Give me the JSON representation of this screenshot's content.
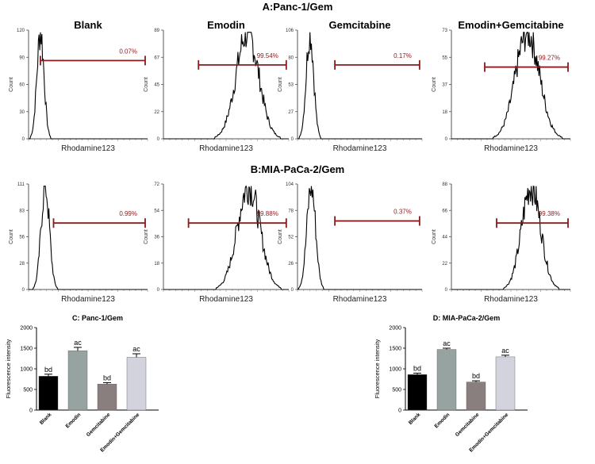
{
  "section_a_title": "A:Panc-1/Gem",
  "section_b_title": "B:MIA-PaCa-2/Gem",
  "chart_data": [
    {
      "type": "histogram",
      "panel": "A-1",
      "title": "Blank",
      "xlabel": "Rhodamine123",
      "ylabel": "Count",
      "yticks": [
        "0",
        "30",
        "60",
        "90",
        "120"
      ],
      "ylim": [
        0,
        120
      ],
      "peak_pos": 0.1,
      "spread": 0.03,
      "gate": [
        0.1,
        0.98
      ],
      "gate_level": 0.72,
      "gate_label": "0.07%"
    },
    {
      "type": "histogram",
      "panel": "A-2",
      "title": "Emodin",
      "xlabel": "Rhodamine123",
      "ylabel": "Count",
      "yticks": [
        "0",
        "22",
        "45",
        "67",
        "89"
      ],
      "ylim": [
        0,
        89
      ],
      "peak_pos": 0.67,
      "spread": 0.09,
      "gate": [
        0.28,
        0.98
      ],
      "gate_level": 0.68,
      "gate_label": "99.54%"
    },
    {
      "type": "histogram",
      "panel": "A-3",
      "title": "Gemcitabine",
      "xlabel": "Rhodamine123",
      "ylabel": "Count",
      "yticks": [
        "0",
        "27",
        "53",
        "80",
        "106"
      ],
      "ylim": [
        0,
        106
      ],
      "peak_pos": 0.1,
      "spread": 0.03,
      "gate": [
        0.3,
        0.98
      ],
      "gate_level": 0.68,
      "gate_label": "0.17%"
    },
    {
      "type": "histogram",
      "panel": "A-4",
      "title": "Emodin+Gemcitabine",
      "xlabel": "Rhodamine123",
      "ylabel": "Count",
      "yticks": [
        "0",
        "18",
        "37",
        "55",
        "73"
      ],
      "ylim": [
        0,
        73
      ],
      "peak_pos": 0.64,
      "spread": 0.1,
      "gate": [
        0.28,
        0.98
      ],
      "gate_level": 0.66,
      "gate_label": "99.27%"
    },
    {
      "type": "histogram",
      "panel": "B-1",
      "title": "",
      "xlabel": "Rhodamine123",
      "ylabel": "Count",
      "yticks": [
        "0",
        "28",
        "56",
        "83",
        "111"
      ],
      "ylim": [
        0,
        111
      ],
      "peak_pos": 0.14,
      "spread": 0.035,
      "gate": [
        0.21,
        0.98
      ],
      "gate_level": 0.63,
      "gate_label": "0.99%"
    },
    {
      "type": "histogram",
      "panel": "B-2",
      "title": "",
      "xlabel": "Rhodamine123",
      "ylabel": "Count",
      "yticks": [
        "0",
        "18",
        "36",
        "54",
        "72"
      ],
      "ylim": [
        0,
        72
      ],
      "peak_pos": 0.68,
      "spread": 0.09,
      "gate": [
        0.2,
        0.98
      ],
      "gate_level": 0.63,
      "gate_label": "99.88%"
    },
    {
      "type": "histogram",
      "panel": "B-3",
      "title": "",
      "xlabel": "Rhodamine123",
      "ylabel": "Count",
      "yticks": [
        "0",
        "26",
        "52",
        "78",
        "104"
      ],
      "ylim": [
        0,
        104
      ],
      "peak_pos": 0.11,
      "spread": 0.035,
      "gate": [
        0.3,
        0.98
      ],
      "gate_level": 0.65,
      "gate_label": "0.37%"
    },
    {
      "type": "histogram",
      "panel": "B-4",
      "title": "",
      "xlabel": "Rhodamine123",
      "ylabel": "Count",
      "yticks": [
        "0",
        "22",
        "44",
        "66",
        "88"
      ],
      "ylim": [
        0,
        88
      ],
      "peak_pos": 0.67,
      "spread": 0.08,
      "gate": [
        0.38,
        0.98
      ],
      "gate_level": 0.63,
      "gate_label": "99.38%"
    },
    {
      "type": "bar",
      "panel": "C",
      "title": "C: Panc-1/Gem",
      "ylabel": "Fluorescence intensity",
      "ylim": [
        0,
        2000
      ],
      "yticks": [
        "0",
        "500",
        "1000",
        "1500",
        "2000"
      ],
      "categories": [
        "Blank",
        "Emodin",
        "Gemcitabine",
        "Emodin+Gemcitabine"
      ],
      "values": [
        820,
        1440,
        630,
        1280
      ],
      "errors": [
        50,
        80,
        35,
        85
      ],
      "labels": [
        "bd",
        "ac",
        "bd",
        "ac"
      ],
      "colors": [
        "#000000",
        "#97a3a1",
        "#8a7f7f",
        "#d3d3de"
      ]
    },
    {
      "type": "bar",
      "panel": "D",
      "title": "D: MIA-PaCa-2/Gem",
      "ylabel": "Fluorescence intensity",
      "ylim": [
        0,
        2000
      ],
      "yticks": [
        "0",
        "500",
        "1000",
        "1500",
        "2000"
      ],
      "categories": [
        "Blank",
        "Emodin",
        "Gemcitabine",
        "Emodin+Gemcitabine"
      ],
      "values": [
        860,
        1470,
        680,
        1290
      ],
      "errors": [
        35,
        30,
        30,
        40
      ],
      "labels": [
        "bd",
        "ac",
        "bd",
        "ac"
      ],
      "colors": [
        "#000000",
        "#97a3a1",
        "#8a7f7f",
        "#d3d3de"
      ]
    }
  ]
}
